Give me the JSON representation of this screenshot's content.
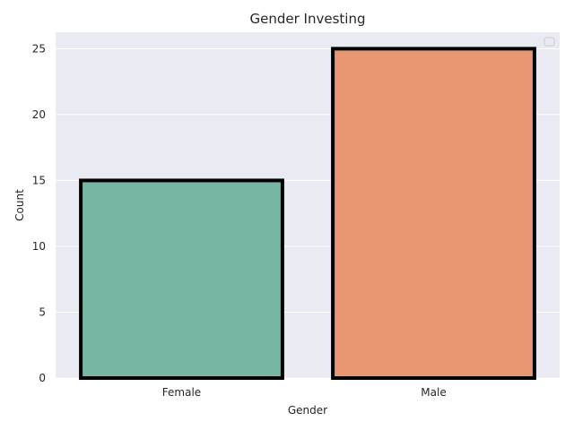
{
  "chart_data": {
    "type": "bar",
    "title": "Gender Investing",
    "xlabel": "Gender",
    "ylabel": "Count",
    "categories": [
      "Female",
      "Male"
    ],
    "values": [
      15,
      25
    ],
    "ylim": [
      0,
      26.25
    ],
    "yticks": [
      0,
      5,
      10,
      15,
      20,
      25
    ],
    "colors": [
      "#76b6a2",
      "#e99773"
    ],
    "edge_color": "#000000",
    "background": "#eaeaf2",
    "grid": true,
    "legend": "top-right (empty)"
  }
}
